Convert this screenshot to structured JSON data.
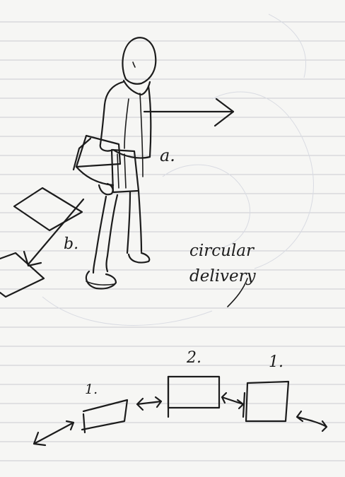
{
  "sketch": {
    "label_a": "a.",
    "label_b": "b.",
    "caption_line1": "circular",
    "caption_line2": "delivery",
    "step_label_left": "1.",
    "step_label_middle": "2.",
    "step_label_right": "1."
  }
}
